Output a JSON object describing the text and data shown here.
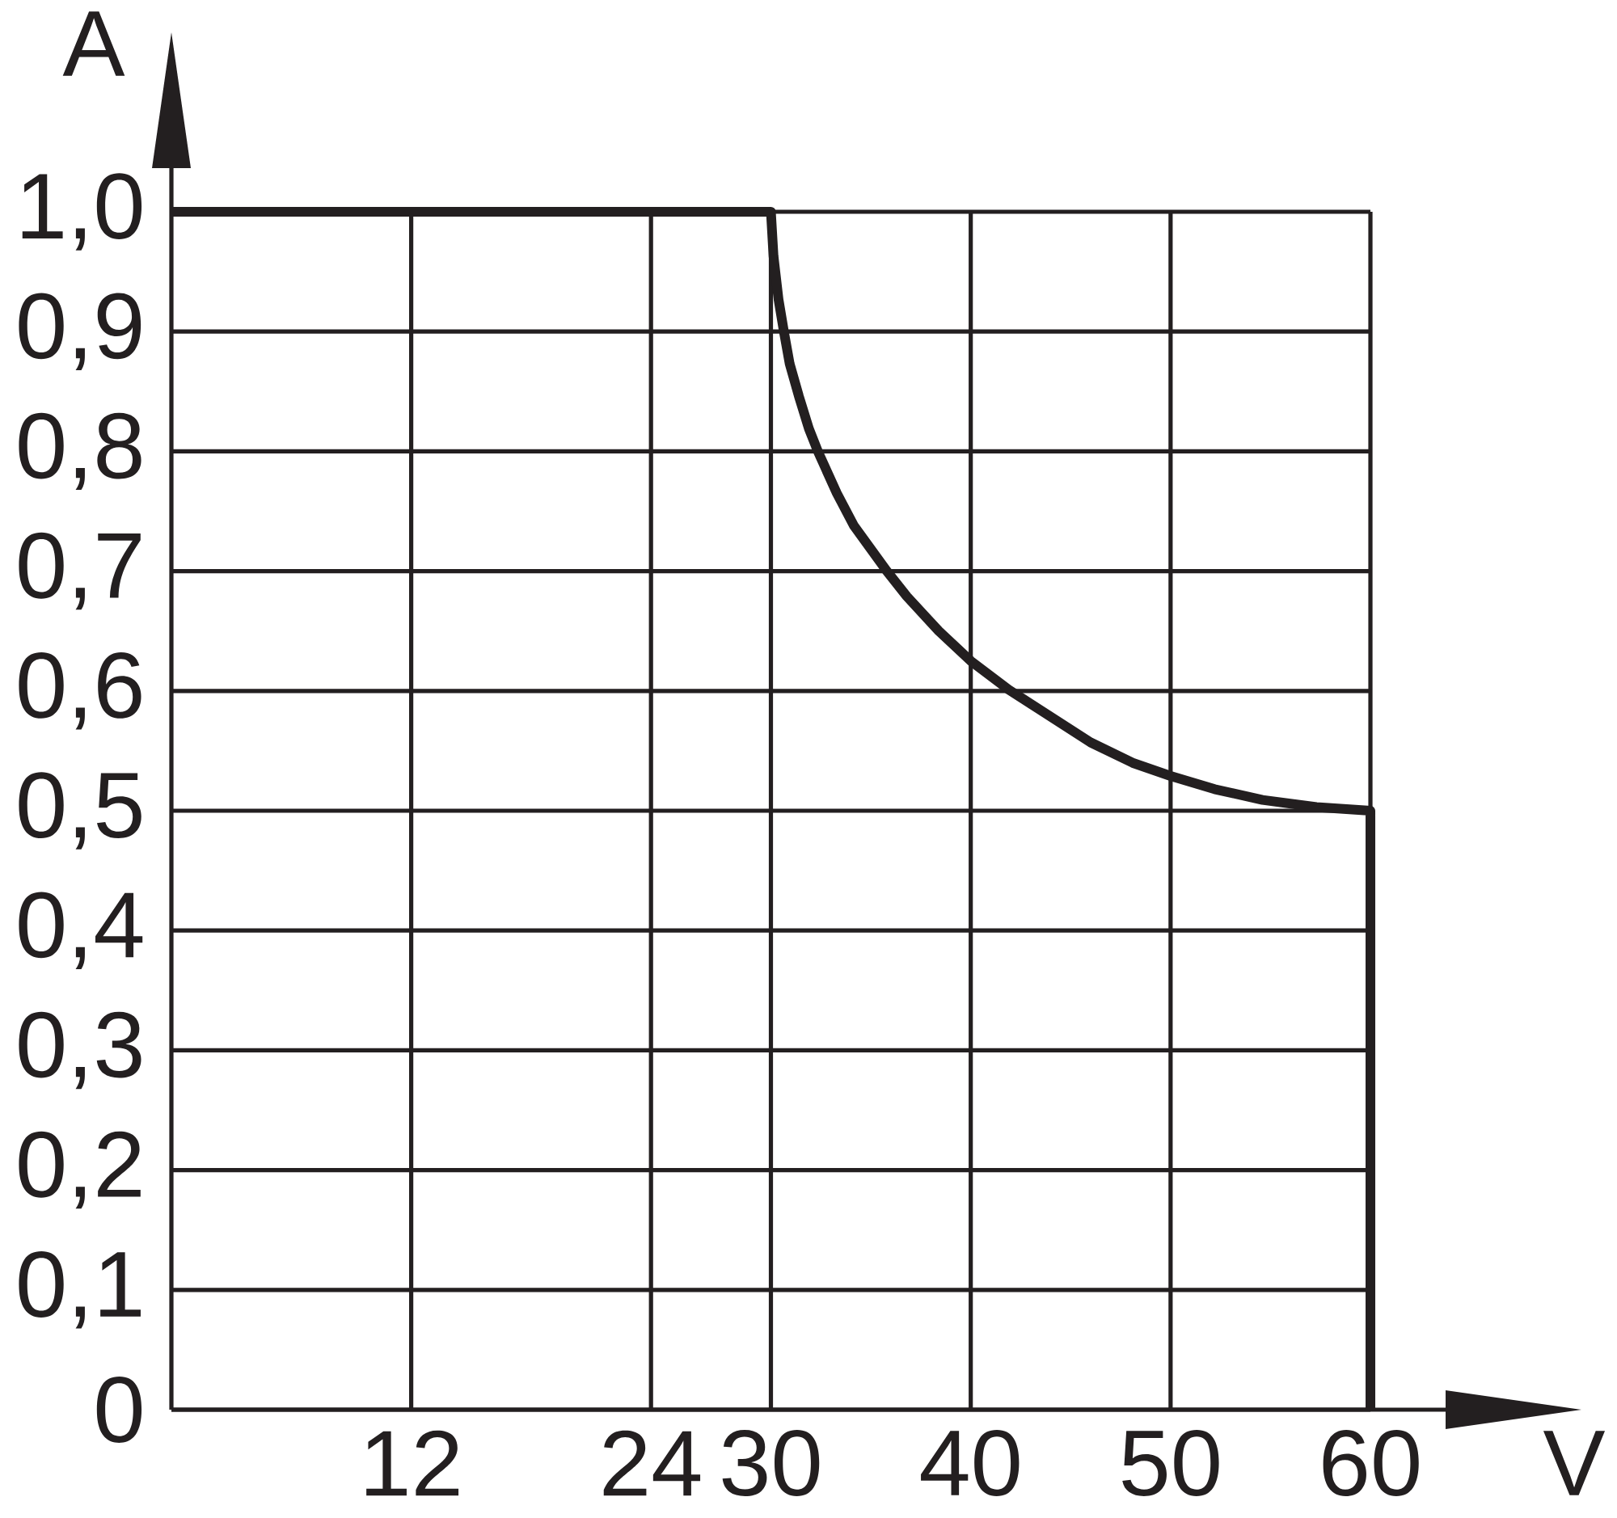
{
  "chart_data": {
    "type": "line",
    "xlabel": "V",
    "ylabel": "A",
    "x": [
      0,
      30,
      30.13,
      30.38,
      30.65,
      30.94,
      31.4,
      31.9,
      32.35,
      33.3,
      34.15,
      35.8,
      36.8,
      38.4,
      40,
      41.9,
      43.3,
      46.0,
      48.1,
      50,
      52.2,
      54.6,
      57.3,
      60,
      60
    ],
    "series": [
      {
        "color": "#231f20",
        "values": [
          1.0,
          1.0,
          0.963,
          0.927,
          0.9,
          0.873,
          0.846,
          0.819,
          0.8,
          0.765,
          0.738,
          0.7,
          0.679,
          0.65,
          0.625,
          0.601,
          0.586,
          0.557,
          0.54,
          0.529,
          0.518,
          0.509,
          0.503,
          0.5,
          0
        ]
      }
    ],
    "xlim": [
      0,
      60
    ],
    "ylim": [
      0,
      1.0
    ],
    "xticks": [
      12,
      24,
      30,
      40,
      50,
      60
    ],
    "yticks": [
      0,
      {
        "value": 0.1,
        "label": "0,1"
      },
      {
        "value": 0.2,
        "label": "0,2"
      },
      {
        "value": 0.3,
        "label": "0,3"
      },
      {
        "value": 0.4,
        "label": "0,4"
      },
      {
        "value": 0.5,
        "label": "0,5"
      },
      {
        "value": 0.6,
        "label": "0,6"
      },
      {
        "value": 0.7,
        "label": "0,7"
      },
      {
        "value": 0.8,
        "label": "0,8"
      },
      {
        "value": 0.9,
        "label": "0,9"
      },
      {
        "value": 1.0,
        "label": "1,0"
      }
    ],
    "grid": true,
    "marker": "none",
    "line_style": "solid"
  }
}
